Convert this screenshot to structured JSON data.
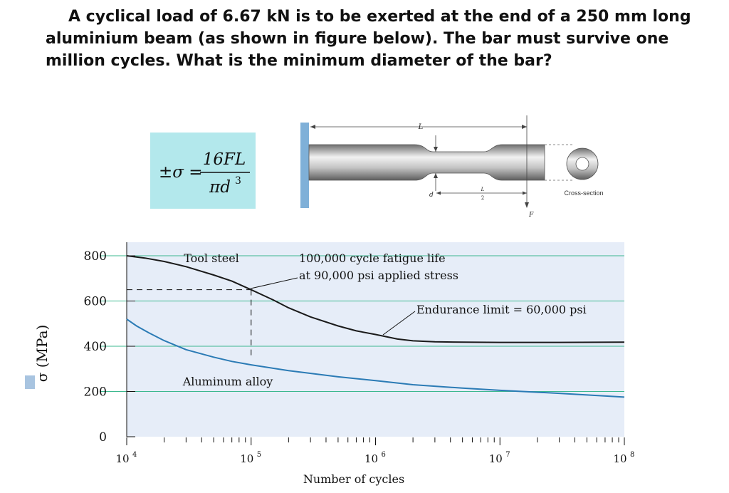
{
  "question": "A cyclical load of 6.67 kN is to be exerted at the end of a 250 mm long aluminium beam (as shown in figure below). The bar must survive one million cycles. What is the minimum diameter of the bar?",
  "formula": {
    "lhs": "±σ =",
    "numerator": "16FL",
    "denominator_base": "πd",
    "denominator_exp": "3"
  },
  "figure": {
    "L_label": "L",
    "d_label": "d",
    "half_L_num": "L",
    "half_L_den": "2",
    "F_label": "F",
    "cross_section_label": "Cross-section"
  },
  "chart_data": {
    "type": "line",
    "xscale": "log",
    "xlim": [
      10000,
      100000000
    ],
    "ylim": [
      0,
      860
    ],
    "xlabel": "Number of cycles",
    "ylabel": "σ (MPa)",
    "x_ticks": [
      {
        "base": "10",
        "exp": "4"
      },
      {
        "base": "10",
        "exp": "5"
      },
      {
        "base": "10",
        "exp": "6"
      },
      {
        "base": "10",
        "exp": "7"
      },
      {
        "base": "10",
        "exp": "8"
      }
    ],
    "y_ticks": [
      "0",
      "200",
      "400",
      "600",
      "800"
    ],
    "y_tick_values": [
      0,
      200,
      400,
      600,
      800
    ],
    "gridlines_y": [
      200,
      400,
      600,
      800
    ],
    "series": [
      {
        "name": "Tool steel",
        "color": "#1a1a1a",
        "x": [
          10000,
          14000,
          20000,
          30000,
          50000,
          70000,
          100000,
          150000,
          200000,
          300000,
          500000,
          700000,
          1000000,
          1500000,
          2000000,
          3000000,
          5000000,
          10000000,
          30000000,
          100000000
        ],
        "y": [
          800,
          790,
          775,
          752,
          715,
          688,
          650,
          605,
          570,
          530,
          490,
          468,
          452,
          432,
          424,
          420,
          418,
          417,
          417,
          418
        ]
      },
      {
        "name": "Aluminum alloy",
        "color": "#2b7bb5",
        "x": [
          10000,
          12000,
          15000,
          20000,
          30000,
          50000,
          70000,
          100000,
          200000,
          500000,
          1000000,
          2000000,
          5000000,
          10000000,
          30000000,
          100000000
        ],
        "y": [
          520,
          490,
          460,
          425,
          385,
          352,
          333,
          318,
          292,
          265,
          248,
          230,
          215,
          205,
          192,
          175
        ]
      }
    ],
    "annotations": [
      {
        "text": "Tool steel"
      },
      {
        "text": "Aluminum alloy"
      },
      {
        "line1": "100,000 cycle fatigue life",
        "line2": "at 90,000 psi applied stress"
      },
      {
        "text": "Endurance limit = 60,000 psi"
      }
    ],
    "grid": true,
    "colors": {
      "background": "#e6edf8",
      "grid": "#3cb88f",
      "steel": "#1a1a1a",
      "aluminum": "#2b7bb5",
      "ylabel_box": "#a8c4e0"
    }
  }
}
